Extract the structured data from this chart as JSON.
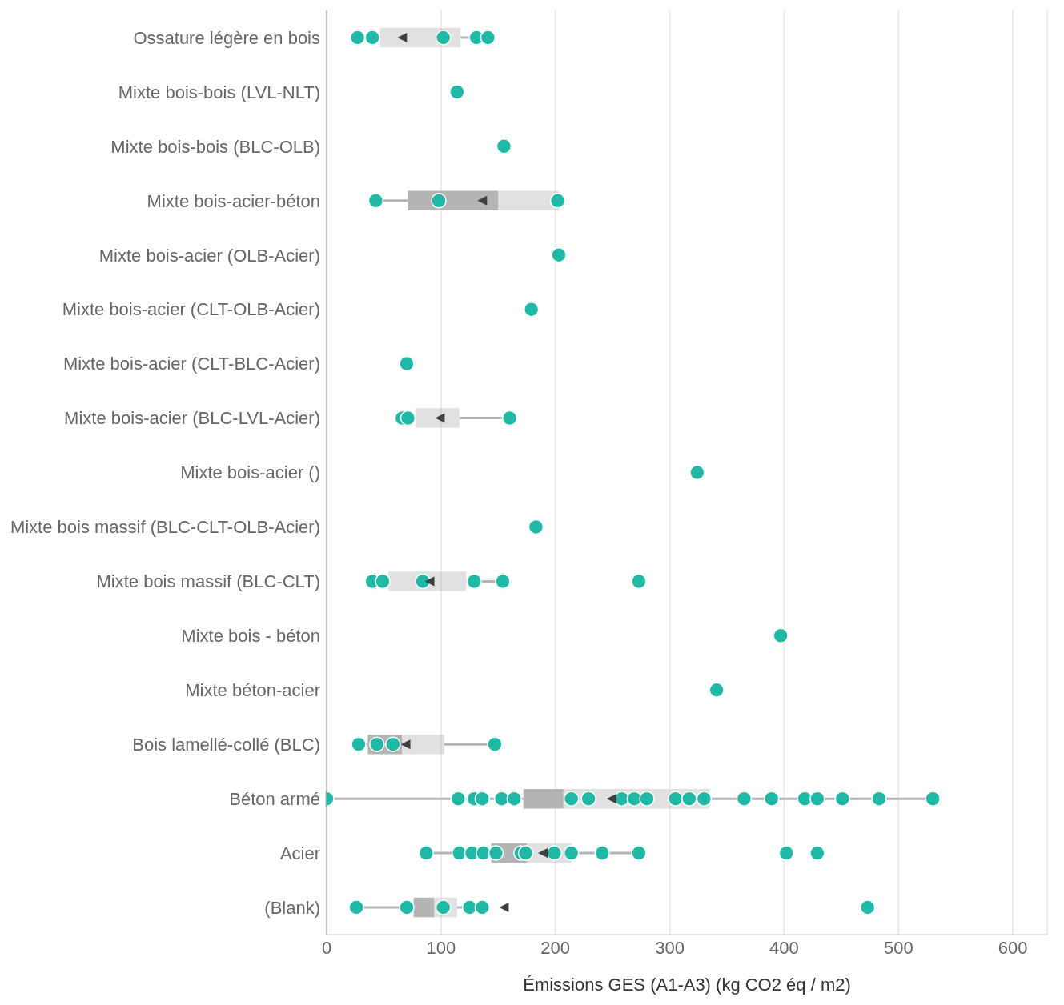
{
  "chart_data": {
    "type": "box",
    "orientation": "horizontal",
    "xlabel": "Émissions GES (A1-A3) (kg CO2 éq / m2)",
    "categories": [
      "Ossature légère en bois",
      "Mixte bois-bois (LVL-NLT)",
      "Mixte bois-bois (BLC-OLB)",
      "Mixte bois-acier-béton",
      "Mixte bois-acier (OLB-Acier)",
      "Mixte bois-acier (CLT-OLB-Acier)",
      "Mixte bois-acier (CLT-BLC-Acier)",
      "Mixte bois-acier (BLC-LVL-Acier)",
      "Mixte bois-acier ()",
      "Mixte bois massif (BLC-CLT-OLB-Acier)",
      "Mixte bois massif (BLC-CLT)",
      "Mixte bois - béton",
      "Mixte béton-acier",
      "Bois lamellé-collé (BLC)",
      "Béton armé",
      "Acier",
      "(Blank)"
    ],
    "xlim": [
      0,
      630
    ],
    "xticks": [
      0,
      100,
      200,
      300,
      400,
      500,
      600
    ],
    "grid": "x",
    "series": [
      {
        "type": "box",
        "color": "#b4b4b4",
        "boxes": [
          {
            "low": 27,
            "q1": 47,
            "median": 47,
            "q3": 117,
            "high": 141,
            "mean": 66
          },
          null,
          null,
          {
            "low": 43,
            "q1": 71,
            "median": 150,
            "q3": 203,
            "high": 203,
            "mean": 136
          },
          null,
          null,
          null,
          {
            "low": 66,
            "q1": 78,
            "median": 78,
            "q3": 116,
            "high": 160,
            "mean": 99
          },
          null,
          null,
          {
            "low": 42,
            "q1": 54,
            "median": 54,
            "q3": 122,
            "high": 154,
            "mean": 90
          },
          null,
          null,
          {
            "low": 28,
            "q1": 36,
            "median": 66,
            "q3": 103,
            "high": 147,
            "mean": 69
          },
          {
            "low": 0,
            "q1": 172,
            "median": 207,
            "q3": 335,
            "high": 530,
            "mean": 249
          },
          {
            "low": 87,
            "q1": 144,
            "median": 175,
            "q3": 214,
            "high": 273,
            "mean": 189
          },
          {
            "low": 26,
            "q1": 76,
            "median": 94,
            "q3": 114,
            "high": 136,
            "mean": 155
          }
        ]
      },
      {
        "type": "scatter",
        "color": "#1fb9a6",
        "x": [
          "Ossature légère en bois",
          "Ossature légère en bois",
          "Ossature légère en bois",
          "Ossature légère en bois",
          "Ossature légère en bois",
          "Mixte bois-bois (LVL-NLT)",
          "Mixte bois-bois (BLC-OLB)",
          "Mixte bois-acier-béton",
          "Mixte bois-acier-béton",
          "Mixte bois-acier-béton",
          "Mixte bois-acier (OLB-Acier)",
          "Mixte bois-acier (CLT-OLB-Acier)",
          "Mixte bois-acier (CLT-BLC-Acier)",
          "Mixte bois-acier (BLC-LVL-Acier)",
          "Mixte bois-acier (BLC-LVL-Acier)",
          "Mixte bois-acier (BLC-LVL-Acier)",
          "Mixte bois-acier ()",
          "Mixte bois massif (BLC-CLT-OLB-Acier)",
          "Mixte bois massif (BLC-CLT)",
          "Mixte bois massif (BLC-CLT)",
          "Mixte bois massif (BLC-CLT)",
          "Mixte bois massif (BLC-CLT)",
          "Mixte bois massif (BLC-CLT)",
          "Mixte bois massif (BLC-CLT)",
          "Mixte bois - béton",
          "Mixte béton-acier",
          "Bois lamellé-collé (BLC)",
          "Bois lamellé-collé (BLC)",
          "Bois lamellé-collé (BLC)",
          "Bois lamellé-collé (BLC)",
          "Béton armé",
          "Béton armé",
          "Béton armé",
          "Béton armé",
          "Béton armé",
          "Béton armé",
          "Béton armé",
          "Béton armé",
          "Béton armé",
          "Béton armé",
          "Béton armé",
          "Béton armé",
          "Béton armé",
          "Béton armé",
          "Béton armé",
          "Béton armé",
          "Béton armé",
          "Béton armé",
          "Béton armé",
          "Béton armé",
          "Béton armé",
          "Acier",
          "Acier",
          "Acier",
          "Acier",
          "Acier",
          "Acier",
          "Acier",
          "Acier",
          "Acier",
          "Acier",
          "Acier",
          "Acier",
          "Acier",
          "(Blank)",
          "(Blank)",
          "(Blank)",
          "(Blank)",
          "(Blank)",
          "(Blank)"
        ],
        "values": [
          27,
          40,
          102,
          131,
          141,
          114,
          155,
          43,
          98,
          202,
          203,
          179,
          70,
          66,
          71,
          160,
          324,
          183,
          40,
          49,
          84,
          129,
          154,
          273,
          397,
          341,
          28,
          44,
          58,
          147,
          0,
          115,
          129,
          136,
          153,
          164,
          214,
          229,
          258,
          269,
          280,
          305,
          317,
          330,
          365,
          389,
          418,
          429,
          451,
          483,
          530,
          87,
          116,
          127,
          137,
          148,
          170,
          174,
          199,
          214,
          241,
          273,
          402,
          429,
          26,
          70,
          102,
          125,
          136,
          473
        ]
      }
    ]
  }
}
